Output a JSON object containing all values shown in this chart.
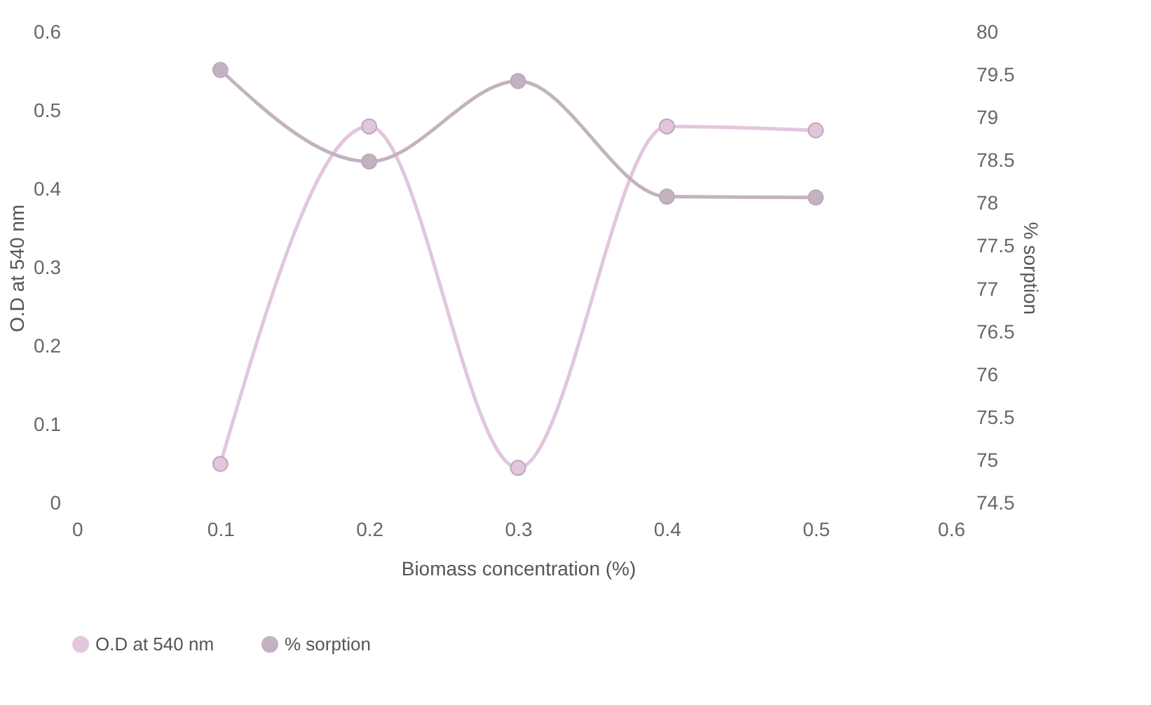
{
  "chart_data": {
    "type": "line",
    "xlabel": "Biomass concentration (%)",
    "ylabel": "O.D at 540 nm",
    "y2label": "% sorption",
    "x": [
      0.1,
      0.2,
      0.3,
      0.4,
      0.5
    ],
    "series": [
      {
        "name": "O.D at 540 nm",
        "color": "#e2c6de",
        "values": [
          0.05,
          0.48,
          0.045,
          0.48,
          0.475
        ]
      },
      {
        "name": "% sorption",
        "color": "#c4b2c0",
        "axis": "y2",
        "values": [
          79.56,
          78.49,
          79.43,
          78.08,
          78.07
        ]
      }
    ],
    "xlim": [
      0,
      0.6
    ],
    "xticks": [
      0,
      0.1,
      0.2,
      0.3,
      0.4,
      0.5,
      0.6
    ],
    "ylim": [
      0,
      0.6
    ],
    "yticks": [
      0,
      0.1,
      0.2,
      0.3,
      0.4,
      0.5,
      0.6
    ],
    "y2lim": [
      74.5,
      80
    ],
    "y2ticks": [
      74.5,
      75,
      75.5,
      76,
      76.5,
      77,
      77.5,
      78,
      78.5,
      79,
      79.5,
      80
    ],
    "grid": false,
    "legend": "bottom",
    "marker": "circle",
    "line_style": "solid"
  }
}
